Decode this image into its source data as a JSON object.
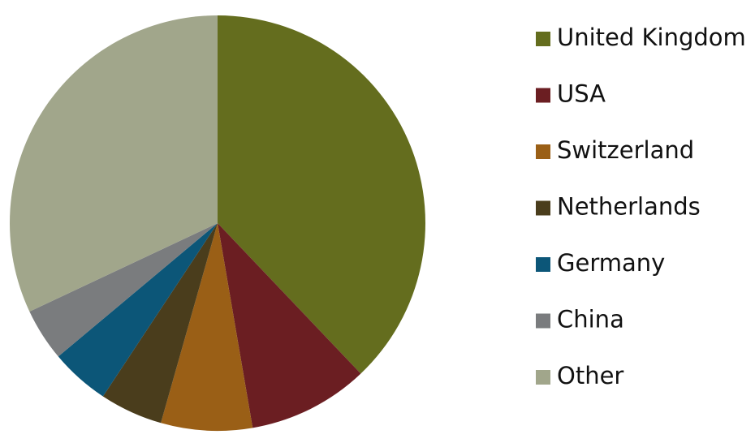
{
  "chart_data": {
    "type": "pie",
    "categories": [
      "United Kingdom",
      "USA",
      "Switzerland",
      "Netherlands",
      "Germany",
      "China",
      "Other"
    ],
    "values": [
      37.9,
      9.4,
      7.1,
      4.9,
      4.6,
      4.1,
      32
    ],
    "colors": [
      "#646d1e",
      "#6b1e22",
      "#9a5f16",
      "#4a3d1c",
      "#0c5678",
      "#7a7c7e",
      "#a1a68b"
    ],
    "legend": "right"
  }
}
